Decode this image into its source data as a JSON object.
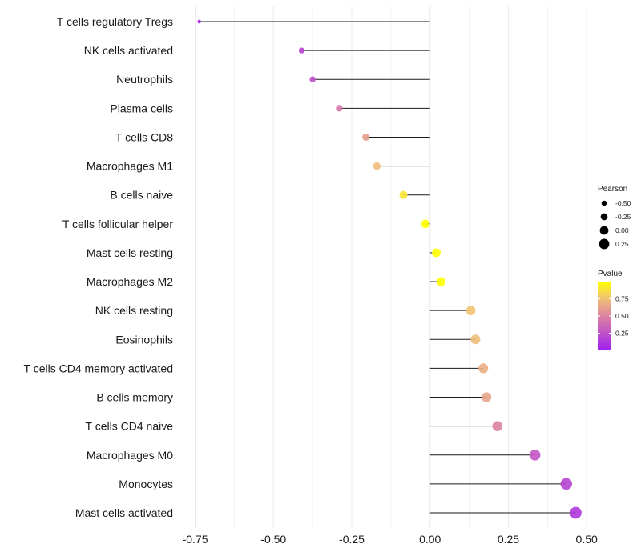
{
  "chart_data": {
    "type": "lollipop",
    "title": "",
    "xlabel": "",
    "ylabel": "",
    "xlim": [
      -0.8,
      0.52
    ],
    "x_ticks": [
      -0.75,
      -0.5,
      -0.25,
      0.0,
      0.25,
      0.5
    ],
    "x_tick_labels": [
      "-0.75",
      "-0.50",
      "-0.25",
      "0.00",
      "0.25",
      "0.50"
    ],
    "grid": true,
    "categories": [
      "T cells regulatory  Tregs",
      "NK cells activated",
      "Neutrophils",
      "Plasma cells",
      "T cells CD8",
      "Macrophages M1",
      "B cells naive",
      "T cells follicular helper",
      "Mast cells resting",
      "Macrophages M2",
      "NK cells resting",
      "Eosinophils",
      "T cells CD4 memory activated",
      "B cells memory",
      "T cells CD4 naive",
      "Macrophages M0",
      "Monocytes",
      "Mast cells activated"
    ],
    "pearson": [
      -0.737,
      -0.41,
      -0.375,
      -0.29,
      -0.205,
      -0.17,
      -0.085,
      -0.015,
      0.02,
      0.035,
      0.13,
      0.145,
      0.17,
      0.18,
      0.215,
      0.335,
      0.435,
      0.465
    ],
    "pvalue": [
      0.02,
      0.18,
      0.24,
      0.45,
      0.62,
      0.74,
      0.9,
      1.0,
      1.0,
      1.0,
      0.76,
      0.74,
      0.68,
      0.64,
      0.5,
      0.28,
      0.18,
      0.12
    ],
    "legend": {
      "size_title": "Pearson",
      "size_values": [
        -0.5,
        -0.25,
        0.0,
        0.25
      ],
      "size_labels": [
        "-0.50",
        "-0.25",
        "0.00",
        "0.25"
      ],
      "color_title": "Pvalue",
      "color_ticks": [
        0.25,
        0.5,
        0.75
      ],
      "color_labels": [
        "0.25",
        "0.50",
        "0.75"
      ],
      "color_range": [
        0.0,
        1.0
      ],
      "position": "right"
    },
    "colors": {
      "low": "#a020f0",
      "mid": "#dc82a0",
      "high": "#ffff00",
      "segment": "#1a1a1a",
      "grid": "#ebebeb"
    }
  }
}
